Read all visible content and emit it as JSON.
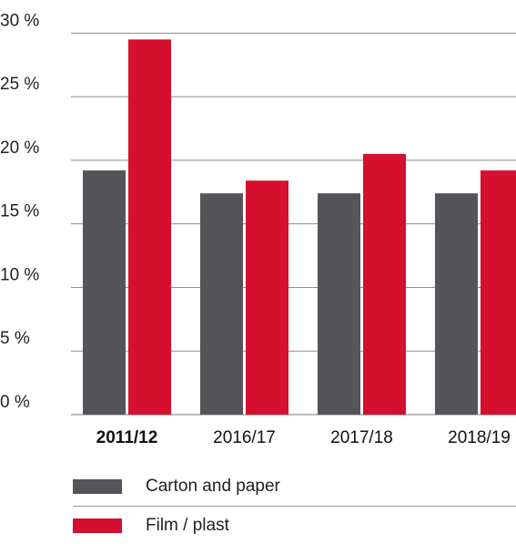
{
  "chart_data": {
    "type": "bar",
    "categories": [
      "2011/12",
      "2016/17",
      "2017/18",
      "2018/19"
    ],
    "highlight_category": "2011/12",
    "series": [
      {
        "name": "Carton and paper",
        "color": "#555559",
        "values": [
          19.2,
          17.4,
          17.4,
          17.4
        ]
      },
      {
        "name": "Film / plast",
        "color": "#d50f2e",
        "values": [
          29.5,
          18.4,
          20.5,
          19.2
        ]
      }
    ],
    "y_ticks": [
      0,
      5,
      10,
      15,
      20,
      25,
      30
    ],
    "y_tick_labels": [
      "0 %",
      "5 %",
      "10 %",
      "15 %",
      "20 %",
      "25 %",
      "30 %"
    ],
    "ylim": [
      0,
      31.6
    ],
    "grid": true,
    "legend_position": "bottom"
  }
}
